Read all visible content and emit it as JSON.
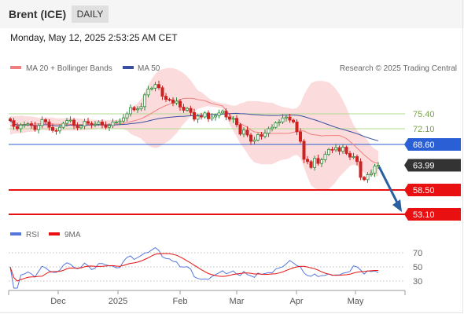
{
  "header": {
    "title": "Brent (ICE)",
    "timeframe": "DAILY"
  },
  "datetime": "Monday, May 12, 2025 2:53:25 AM CET",
  "legend": {
    "ma20": "MA 20 + Bollinger Bands",
    "ma50": "MA 50",
    "rsi": "RSI",
    "ma9": "9MA"
  },
  "credit": "Research © 2025 Trading Central",
  "colors": {
    "ma20": "#f08080",
    "ma50": "#3a4fa0",
    "bands": "#f9cfcf",
    "up": "#2e8b3a",
    "down": "#cc2222",
    "support": "#e81010",
    "pivot": "#2a5fd6",
    "resistance": "#b0d890",
    "price": "#333333",
    "rsi": "#5577dd",
    "arrow": "#2a5fa0"
  },
  "chart_data": [
    {
      "type": "candlestick",
      "price_levels": [
        {
          "value": "75.40",
          "kind": "resistance"
        },
        {
          "value": "72.10",
          "kind": "resistance"
        },
        {
          "value": "68.60",
          "kind": "pivot"
        },
        {
          "value": "63.99",
          "kind": "last_price"
        },
        {
          "value": "58.50",
          "kind": "support"
        },
        {
          "value": "53.10",
          "kind": "support"
        }
      ],
      "xticks": [
        "Dec",
        "2025",
        "Feb",
        "Mar",
        "Apr",
        "May"
      ],
      "close": [
        73.9,
        72.6,
        72.1,
        72.9,
        73.0,
        73.2,
        72.8,
        71.9,
        72.8,
        74.1,
        73.6,
        72.4,
        71.7,
        71.6,
        72.4,
        73.3,
        73.9,
        74.0,
        72.8,
        72.3,
        72.7,
        73.7,
        73.3,
        73.0,
        73.1,
        73.6,
        72.9,
        72.4,
        72.8,
        73.6,
        73.6,
        73.8,
        74.5,
        75.4,
        76.8,
        76.3,
        76.5,
        77.0,
        79.6,
        80.9,
        81.1,
        81.9,
        81.2,
        79.3,
        78.6,
        78.5,
        77.8,
        78.2,
        76.9,
        76.2,
        76.6,
        75.7,
        74.2,
        74.9,
        74.7,
        75.6,
        74.3,
        74.7,
        75.0,
        75.6,
        76.0,
        74.7,
        74.2,
        74.4,
        73.0,
        70.9,
        71.8,
        70.7,
        69.3,
        69.6,
        70.8,
        70.4,
        71.1,
        72.1,
        72.4,
        73.4,
        73.6,
        74.5,
        74.7,
        74.0,
        73.6,
        71.4,
        69.3,
        65.3,
        64.8,
        63.5,
        65.5,
        64.4,
        65.2,
        66.4,
        67.5,
        67.4,
        67.9,
        67.1,
        68.0,
        66.6,
        65.8,
        65.9,
        64.8,
        61.3,
        60.8,
        61.9,
        62.2,
        63.8,
        64.0
      ],
      "bollinger_upper": [
        74.9,
        74.9,
        74.9,
        75.0,
        74.9,
        74.8,
        74.8,
        74.7,
        74.5,
        74.6,
        74.6,
        74.6,
        74.6,
        74.4,
        74.4,
        74.4,
        74.5,
        74.5,
        74.4,
        74.4,
        74.3,
        74.2,
        74.2,
        74.1,
        74.1,
        74.0,
        74.0,
        74.0,
        74.0,
        74.0,
        74.1,
        74.2,
        74.6,
        75.2,
        76.3,
        77.1,
        77.8,
        78.7,
        80.3,
        81.8,
        83.1,
        84.3,
        85.0,
        85.3,
        85.5,
        85.6,
        85.5,
        85.3,
        84.9,
        84.4,
        83.7,
        82.8,
        81.7,
        80.6,
        80.2,
        79.6,
        78.9,
        78.4,
        78.1,
        77.9,
        77.7,
        77.6,
        77.4,
        77.2,
        77.3,
        77.7,
        77.9,
        78.2,
        78.2,
        78.2,
        78.2,
        78.1,
        78.0,
        77.9,
        77.9,
        77.5,
        77.2,
        76.9,
        76.8,
        76.6,
        76.5,
        76.7,
        77.6,
        79.6,
        81.0,
        82.2,
        82.6,
        82.7,
        82.7,
        82.6,
        82.4,
        81.8,
        80.9,
        79.8,
        78.4,
        76.8,
        74.7,
        73.0,
        71.7,
        71.0,
        70.3,
        69.5,
        68.3,
        67.6,
        67.2
      ],
      "bollinger_lower": [
        70.7,
        71.0,
        71.1,
        71.1,
        71.2,
        71.4,
        71.4,
        71.6,
        71.8,
        71.8,
        71.8,
        71.7,
        71.7,
        71.8,
        71.8,
        71.7,
        71.7,
        71.7,
        71.7,
        71.7,
        71.7,
        71.8,
        71.8,
        71.9,
        71.9,
        72.1,
        72.2,
        72.2,
        72.2,
        72.2,
        72.2,
        72.2,
        72.0,
        71.7,
        71.0,
        70.6,
        70.3,
        69.9,
        69.1,
        68.4,
        68.0,
        67.8,
        68.0,
        68.5,
        69.0,
        69.5,
        70.3,
        71.1,
        72.2,
        73.2,
        74.0,
        74.9,
        75.8,
        76.5,
        76.7,
        77.0,
        77.1,
        77.0,
        76.9,
        76.8,
        76.6,
        74.7,
        73.0,
        71.7,
        70.3,
        68.8,
        67.8,
        66.6,
        65.4,
        64.6,
        64.4,
        64.2,
        64.2,
        64.2,
        64.2,
        64.6,
        65.0,
        65.2,
        65.3,
        65.6,
        66.1,
        66.3,
        65.6,
        63.6,
        61.4,
        59.5,
        58.9,
        58.6,
        58.3,
        58.5,
        58.7,
        59.4,
        60.3,
        61.4,
        62.2,
        63.0,
        63.8,
        64.1,
        63.9,
        63.1,
        62.3,
        61.8,
        61.7,
        61.5,
        61.6
      ]
    },
    {
      "type": "line",
      "yticks": [
        "70",
        "50",
        "30"
      ]
    }
  ]
}
